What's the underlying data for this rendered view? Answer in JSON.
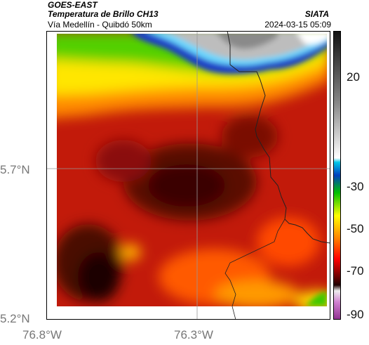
{
  "header": {
    "satellite": "GOES-EAST",
    "product": "Temperatura de Brillo CH13",
    "subtitle": "Vía Medellín - Quibdó 50km",
    "source": "SIATA",
    "datetime": "2024-03-15 05:09"
  },
  "axes": {
    "lat_labels": [
      "5.7°N",
      "5.2°N"
    ],
    "lon_labels": [
      "76.8°W",
      "76.3°W"
    ]
  },
  "colorbar": {
    "tick_labels": [
      "20",
      "-30",
      "-50",
      "-70",
      "-90"
    ],
    "colors": [
      "#1a1a1a",
      "#b0b0b0",
      "#ffffff",
      "#00c8e8",
      "#0040c0",
      "#00c000",
      "#ffff00",
      "#ff8000",
      "#ff0000",
      "#800000",
      "#200000",
      "#ffffff",
      "#c060c0"
    ]
  }
}
